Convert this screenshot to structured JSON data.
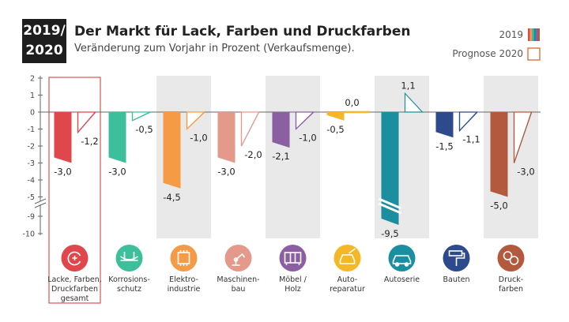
{
  "header": {
    "badge_line1": "2019/",
    "badge_line2": "2020",
    "title": "Der Markt für Lack, Farben und Druckfarben",
    "subtitle": "Veränderung zum Vorjahr in Prozent (Verkaufsmenge)."
  },
  "legend": {
    "actual_label": "2019",
    "forecast_label": "Prognose 2020"
  },
  "colors": {
    "shade": "#e9e9e9",
    "axis": "#666666",
    "highlight": "#d9534f"
  },
  "chart_data": {
    "type": "bar",
    "title": "Der Markt für Lack, Farben und Druckfarben",
    "subtitle": "Veränderung zum Vorjahr in Prozent (Verkaufsmenge).",
    "ylim": [
      -10,
      2
    ],
    "y_ticks": [
      "2",
      "1",
      "0",
      "-1",
      "-2",
      "-3",
      "-4",
      "-5",
      "-9",
      "-10"
    ],
    "axis_break": "between -5 and -9",
    "grid": false,
    "legend_position": "top-right",
    "series": [
      {
        "name": "2019",
        "values": [
          -3.0,
          -3.0,
          -4.5,
          -3.0,
          -2.1,
          -0.5,
          -9.5,
          -1.5,
          -5.0
        ]
      },
      {
        "name": "Prognose 2020",
        "values": [
          -1.2,
          -0.5,
          -1.0,
          -2.0,
          -1.0,
          0.0,
          1.1,
          -1.1,
          -3.0
        ]
      }
    ],
    "value_labels_2019": [
      "-3,0",
      "-3,0",
      "-4,5",
      "-3,0",
      "-2,1",
      "-0,5",
      "-9,5",
      "-1,5",
      "-5,0"
    ],
    "value_labels_2020": [
      "-1,2",
      "-0,5",
      "-1,0",
      "-2,0",
      "-1,0",
      "0,0",
      "1,1",
      "-1,1",
      "-3,0"
    ],
    "categories": [
      {
        "lines": [
          "Lacke, Farben,",
          "Druckfarben",
          "gesamt"
        ],
        "color": "#e0474c",
        "icon": "refresh-plus-icon",
        "highlighted": true
      },
      {
        "lines": [
          "Korrosions-",
          "schutz"
        ],
        "color": "#3dbf9b",
        "icon": "bridge-icon"
      },
      {
        "lines": [
          "Elektro-",
          "industrie"
        ],
        "color": "#f59b45",
        "icon": "chip-icon"
      },
      {
        "lines": [
          "Maschinen-",
          "bau"
        ],
        "color": "#e5998a",
        "icon": "robot-arm-icon"
      },
      {
        "lines": [
          "Möbel /",
          "Holz"
        ],
        "color": "#8b5fa1",
        "icon": "furniture-icon"
      },
      {
        "lines": [
          "Auto-",
          "reparatur"
        ],
        "color": "#f6b727",
        "icon": "wrench-car-icon"
      },
      {
        "lines": [
          "Autoserie"
        ],
        "color": "#1b8ea0",
        "icon": "car-icon"
      },
      {
        "lines": [
          "Bauten"
        ],
        "color": "#2c4a8c",
        "icon": "paint-roller-icon"
      },
      {
        "lines": [
          "Druck-",
          "farben"
        ],
        "color": "#b35a3e",
        "icon": "printer-rolls-icon"
      }
    ]
  }
}
